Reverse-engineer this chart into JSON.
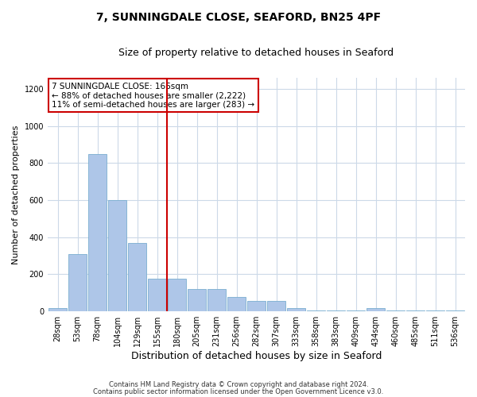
{
  "title": "7, SUNNINGDALE CLOSE, SEAFORD, BN25 4PF",
  "subtitle": "Size of property relative to detached houses in Seaford",
  "xlabel": "Distribution of detached houses by size in Seaford",
  "ylabel": "Number of detached properties",
  "categories": [
    "28sqm",
    "53sqm",
    "78sqm",
    "104sqm",
    "129sqm",
    "155sqm",
    "180sqm",
    "205sqm",
    "231sqm",
    "256sqm",
    "282sqm",
    "307sqm",
    "333sqm",
    "358sqm",
    "383sqm",
    "409sqm",
    "434sqm",
    "460sqm",
    "485sqm",
    "511sqm",
    "536sqm"
  ],
  "values": [
    20,
    310,
    850,
    600,
    370,
    175,
    175,
    120,
    120,
    80,
    55,
    55,
    20,
    5,
    5,
    5,
    20,
    5,
    5,
    5,
    5
  ],
  "bar_color": "#aec6e8",
  "bar_edge_color": "#7aaed0",
  "vline_x": 6,
  "vline_color": "#cc0000",
  "annotation_text": "7 SUNNINGDALE CLOSE: 166sqm\n← 88% of detached houses are smaller (2,222)\n11% of semi-detached houses are larger (283) →",
  "annotation_box_color": "#ffffff",
  "annotation_box_edge_color": "#cc0000",
  "ylim": [
    0,
    1260
  ],
  "yticks": [
    0,
    200,
    400,
    600,
    800,
    1000,
    1200
  ],
  "footnote1": "Contains HM Land Registry data © Crown copyright and database right 2024.",
  "footnote2": "Contains public sector information licensed under the Open Government Licence v3.0.",
  "bg_color": "#ffffff",
  "grid_color": "#ccd9e8",
  "title_fontsize": 10,
  "subtitle_fontsize": 9,
  "tick_fontsize": 7,
  "ylabel_fontsize": 8,
  "xlabel_fontsize": 9
}
